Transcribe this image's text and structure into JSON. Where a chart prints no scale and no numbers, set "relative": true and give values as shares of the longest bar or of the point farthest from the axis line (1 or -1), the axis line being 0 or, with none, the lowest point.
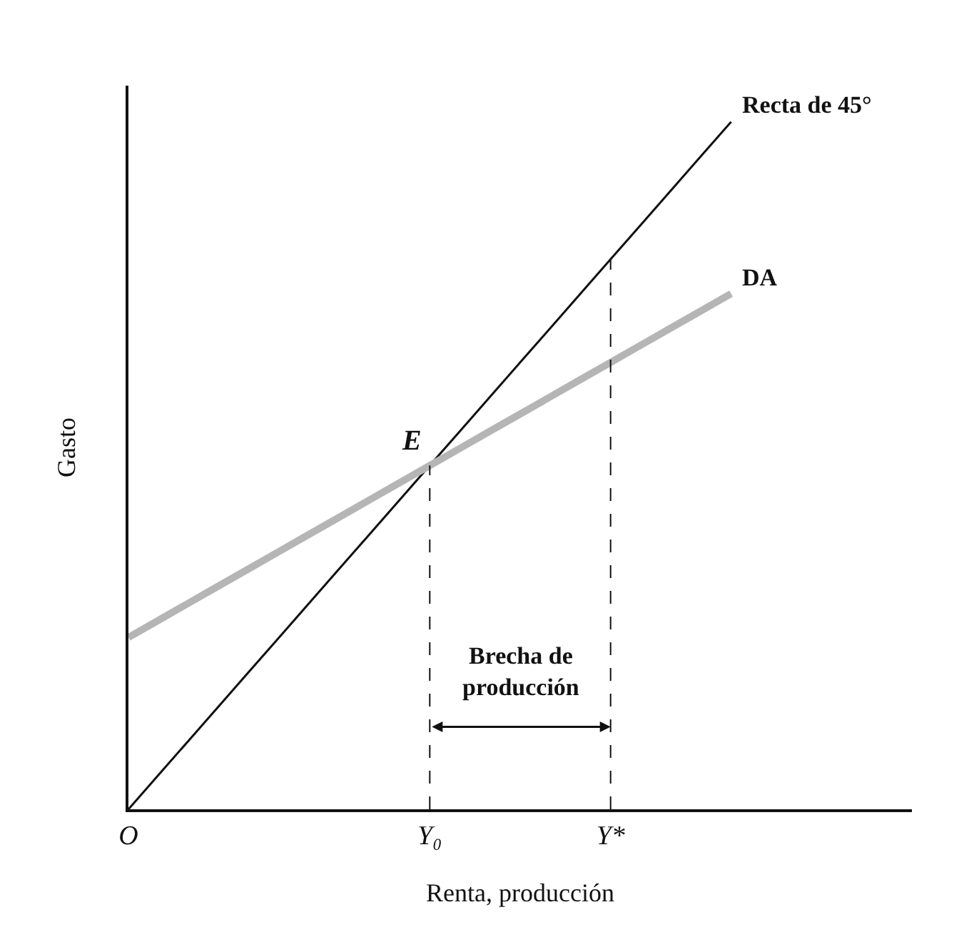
{
  "chart_data": {
    "type": "line",
    "relative": true,
    "xlabel": "Renta, producción",
    "ylabel": "Gasto",
    "categories": [
      "O",
      null,
      null,
      null,
      null,
      null,
      null,
      null,
      null,
      null,
      "Y₀",
      null,
      null,
      null,
      null,
      null,
      "Y*",
      null,
      null,
      null,
      null
    ],
    "series": [
      {
        "name": "Recta de 45°",
        "color": "#111111",
        "values": [
          0,
          0.05,
          0.1,
          0.15,
          0.2,
          0.25,
          0.3,
          0.35,
          0.4,
          0.45,
          0.5,
          0.55,
          0.6,
          0.65,
          0.7,
          0.75,
          0.8,
          0.85,
          0.9,
          0.95,
          1
        ]
      },
      {
        "name": "DA",
        "color": "#b5b5b5",
        "values": [
          0.25,
          0.275,
          0.3,
          0.325,
          0.35,
          0.375,
          0.4,
          0.425,
          0.45,
          0.475,
          0.5,
          0.525,
          0.55,
          0.575,
          0.6,
          0.625,
          0.65,
          0.675,
          0.7,
          0.725,
          0.75
        ]
      }
    ],
    "ref_lines": [
      {
        "axis": "x",
        "value": "Y₀",
        "color": "#111111",
        "line_style": "dashed"
      },
      {
        "axis": "x",
        "value": "Y*",
        "color": "#111111",
        "line_style": "dashed"
      }
    ],
    "annotations": [
      {
        "text": "E",
        "x": "Y₀",
        "y": 0.5
      },
      "Brecha de\nproducción"
    ],
    "grid": false,
    "legend": false,
    "marker": "none"
  }
}
